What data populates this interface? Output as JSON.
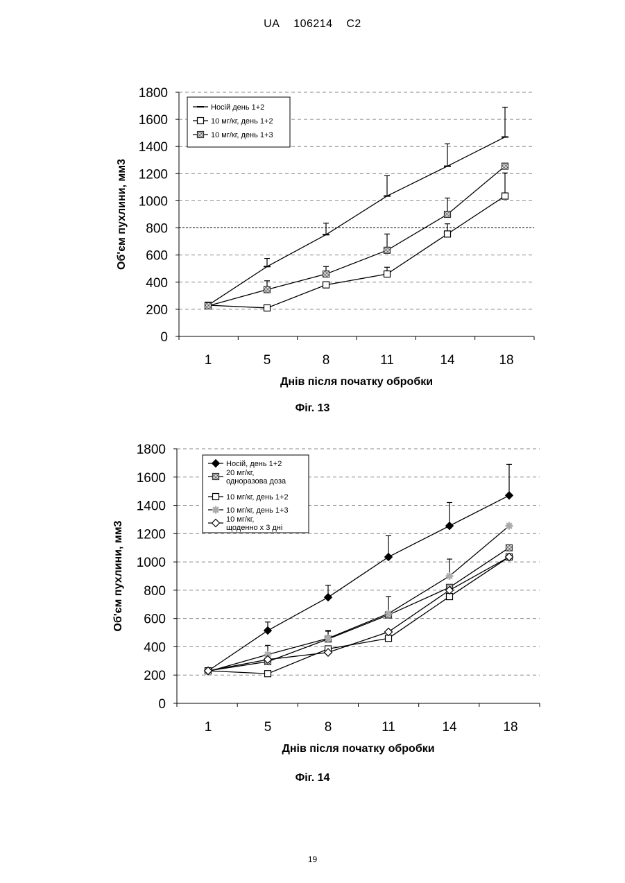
{
  "header": {
    "code": "UA",
    "number": "106214",
    "kind": "C2"
  },
  "page_number": "19",
  "chart_data": [
    {
      "type": "line",
      "caption": "Фіг. 13",
      "xlabel": "Днів після початку обробки",
      "ylabel": "Об'єм пухлини, мм3",
      "categories": [
        "1",
        "5",
        "8",
        "11",
        "14",
        "18"
      ],
      "ylim": [
        0,
        1800
      ],
      "yticks": [
        "0",
        "200",
        "400",
        "600",
        "800",
        "1000",
        "1200",
        "1400",
        "1600",
        "1800"
      ],
      "grid": "horizontal dashed",
      "highlight_line": 800,
      "legend_position": "top-left",
      "series": [
        {
          "name": "Носій день 1+2",
          "marker": "dash",
          "values": [
            230,
            515,
            750,
            1035,
            1255,
            1470
          ],
          "err": [
            0,
            60,
            85,
            150,
            165,
            220
          ]
        },
        {
          "name": "10 мг/кг, день 1+2",
          "marker": "square-open",
          "values": [
            230,
            210,
            380,
            460,
            755,
            1035
          ],
          "err": [
            0,
            0,
            0,
            50,
            75,
            170
          ]
        },
        {
          "name": "10 мг/кг, день 1+3",
          "marker": "square-hatched",
          "values": [
            225,
            345,
            460,
            635,
            900,
            1255
          ],
          "err": [
            0,
            65,
            55,
            120,
            120,
            0
          ]
        }
      ]
    },
    {
      "type": "line",
      "caption": "Фіг. 14",
      "xlabel": "Днів після початку обробки",
      "ylabel": "Об'єм пухлини, мм3",
      "categories": [
        "1",
        "5",
        "8",
        "11",
        "14",
        "18"
      ],
      "ylim": [
        0,
        1800
      ],
      "yticks": [
        "0",
        "200",
        "400",
        "600",
        "800",
        "1000",
        "1200",
        "1400",
        "1600",
        "1800"
      ],
      "grid": "horizontal dashed",
      "legend_position": "top-left",
      "series": [
        {
          "name": "Носій, день 1+2",
          "marker": "diamond-filled",
          "values": [
            230,
            515,
            750,
            1035,
            1255,
            1470
          ],
          "err": [
            0,
            60,
            85,
            150,
            165,
            220
          ]
        },
        {
          "name": "20 мг/кг, одноразова доза",
          "name_lines": [
            "20 мг/кг,",
            "одноразова доза"
          ],
          "marker": "square-hatched",
          "values": [
            230,
            295,
            455,
            625,
            820,
            1100
          ],
          "err": [
            0,
            0,
            55,
            0,
            0,
            0
          ]
        },
        {
          "name": "10 мг/кг, день 1+2",
          "marker": "square-open",
          "values": [
            230,
            210,
            385,
            460,
            755,
            1035
          ],
          "err": [
            0,
            0,
            0,
            0,
            0,
            0
          ]
        },
        {
          "name": "10 мг/кг, день 1+3",
          "marker": "star-hatched",
          "values": [
            225,
            345,
            460,
            635,
            900,
            1255
          ],
          "err": [
            0,
            65,
            55,
            120,
            120,
            0
          ]
        },
        {
          "name": "10 мг/кг, щоденно х 3 дні",
          "name_lines": [
            "10 мг/кг,",
            "щоденно х 3 дні"
          ],
          "marker": "diamond-open",
          "values": [
            230,
            310,
            360,
            505,
            800,
            1035
          ],
          "err": [
            0,
            0,
            0,
            0,
            0,
            0
          ]
        }
      ]
    }
  ]
}
